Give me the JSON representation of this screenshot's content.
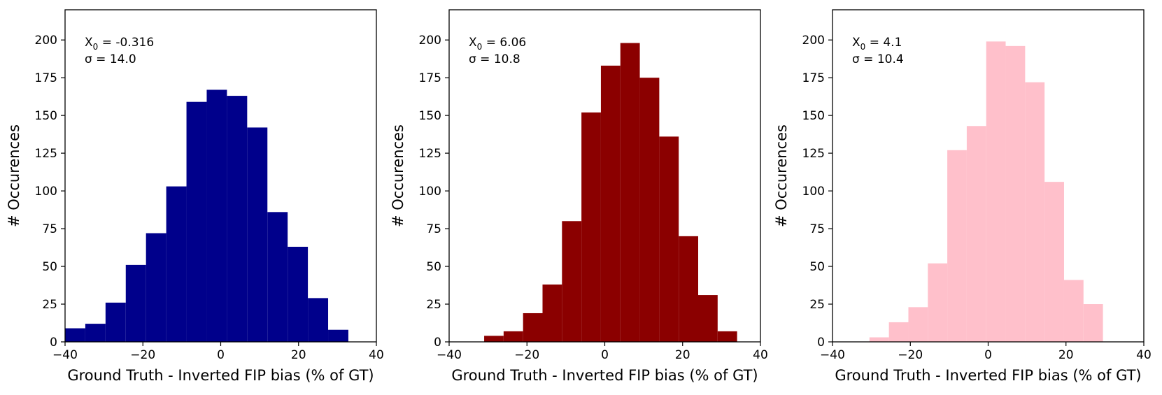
{
  "chart_data": [
    {
      "type": "bar",
      "color": "#00008b",
      "annotation": {
        "x0_symbol": "X",
        "x0_subscript": "0",
        "x0_value": " = -0.316",
        "sigma_text": "σ = 14.0"
      },
      "xlabel": "Ground Truth - Inverted FIP bias (% of GT)",
      "ylabel": "# Occurences",
      "xlim": [
        -40,
        40
      ],
      "ylim": [
        0,
        220
      ],
      "xticks": [
        -40,
        -20,
        0,
        20,
        40
      ],
      "xtick_labels": [
        "−40",
        "−20",
        "0",
        "20",
        "40"
      ],
      "yticks": [
        0,
        25,
        50,
        75,
        100,
        125,
        150,
        175,
        200
      ],
      "ytick_labels": [
        "0",
        "25",
        "50",
        "75",
        "100",
        "125",
        "150",
        "175",
        "200"
      ],
      "bin_edges": [
        -40.0,
        -34.8,
        -29.6,
        -24.4,
        -19.2,
        -14.0,
        -8.8,
        -3.6,
        1.6,
        6.8,
        12.0,
        17.2,
        22.4,
        27.6,
        32.8
      ],
      "counts": [
        9,
        12,
        26,
        51,
        72,
        103,
        159,
        167,
        163,
        142,
        86,
        63,
        29,
        8
      ]
    },
    {
      "type": "bar",
      "color": "#8b0000",
      "annotation": {
        "x0_symbol": "X",
        "x0_subscript": "0",
        "x0_value": " = 6.06",
        "sigma_text": "σ = 10.8"
      },
      "xlabel": "Ground Truth - Inverted FIP bias (% of GT)",
      "ylabel": "# Occurences",
      "xlim": [
        -40,
        40
      ],
      "ylim": [
        0,
        220
      ],
      "xticks": [
        -40,
        -20,
        0,
        20,
        40
      ],
      "xtick_labels": [
        "−40",
        "−20",
        "0",
        "20",
        "40"
      ],
      "yticks": [
        0,
        25,
        50,
        75,
        100,
        125,
        150,
        175,
        200
      ],
      "ytick_labels": [
        "0",
        "25",
        "50",
        "75",
        "100",
        "125",
        "150",
        "175",
        "200"
      ],
      "bin_edges": [
        -31.0,
        -26.0,
        -21.0,
        -16.0,
        -11.0,
        -6.0,
        -1.0,
        4.0,
        9.0,
        14.0,
        19.0,
        24.0,
        29.0,
        34.0
      ],
      "counts": [
        4,
        7,
        19,
        38,
        80,
        152,
        183,
        198,
        175,
        136,
        70,
        31,
        7
      ]
    },
    {
      "type": "bar",
      "color": "#ffc0cb",
      "annotation": {
        "x0_symbol": "X",
        "x0_subscript": "0",
        "x0_value": " = 4.1",
        "sigma_text": "σ = 10.4"
      },
      "xlabel": "Ground Truth - Inverted FIP bias (% of GT)",
      "ylabel": "# Occurences",
      "xlim": [
        -40,
        40
      ],
      "ylim": [
        0,
        220
      ],
      "xticks": [
        -40,
        -20,
        0,
        20,
        40
      ],
      "xtick_labels": [
        "−40",
        "−20",
        "0",
        "20",
        "40"
      ],
      "yticks": [
        0,
        25,
        50,
        75,
        100,
        125,
        150,
        175,
        200
      ],
      "ytick_labels": [
        "0",
        "25",
        "50",
        "75",
        "100",
        "125",
        "150",
        "175",
        "200"
      ],
      "bin_edges": [
        -30.5,
        -25.5,
        -20.5,
        -15.5,
        -10.5,
        -5.5,
        -0.5,
        4.5,
        9.5,
        14.5,
        19.5,
        24.5,
        29.5
      ],
      "counts": [
        3,
        13,
        23,
        52,
        127,
        143,
        199,
        196,
        172,
        106,
        41,
        25
      ]
    }
  ]
}
